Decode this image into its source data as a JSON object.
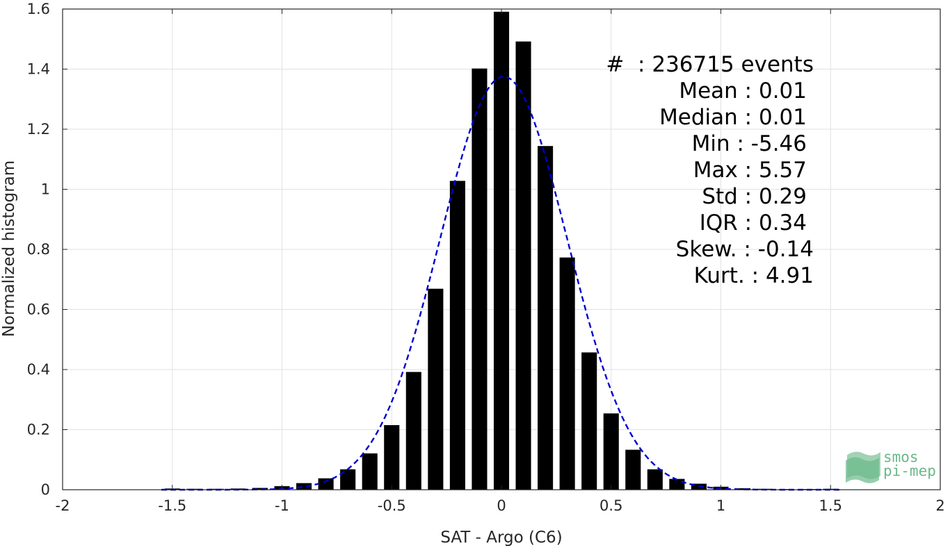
{
  "chart_data": {
    "type": "bar",
    "xlabel": "SAT - Argo (C6)",
    "ylabel": "Normalized histogram",
    "xlim": [
      -2,
      2
    ],
    "ylim": [
      0,
      1.6
    ],
    "grid": true,
    "x_ticks": [
      "-2",
      "-1.5",
      "-1",
      "-0.5",
      "0",
      "0.5",
      "1",
      "1.5",
      "2"
    ],
    "y_ticks": [
      "0",
      "0.2",
      "0.4",
      "0.6",
      "0.8",
      "1",
      "1.2",
      "1.4",
      "1.6"
    ],
    "bar_color": "#000000",
    "bars": {
      "x": [
        -1.5,
        -1.4,
        -1.3,
        -1.2,
        -1.1,
        -1.0,
        -0.9,
        -0.8,
        -0.7,
        -0.6,
        -0.5,
        -0.4,
        -0.3,
        -0.2,
        -0.1,
        0.0,
        0.1,
        0.2,
        0.3,
        0.4,
        0.5,
        0.6,
        0.7,
        0.8,
        0.9,
        1.0,
        1.1,
        1.2,
        1.3,
        1.4,
        1.5
      ],
      "values": [
        0.004,
        0.003,
        0.003,
        0.004,
        0.006,
        0.012,
        0.022,
        0.038,
        0.068,
        0.121,
        0.215,
        0.392,
        0.669,
        1.028,
        1.402,
        1.591,
        1.492,
        1.144,
        0.773,
        0.457,
        0.254,
        0.133,
        0.068,
        0.036,
        0.02,
        0.01,
        0.005,
        0.003,
        0.002,
        0.002,
        0.003
      ]
    },
    "fit_curve": {
      "type": "gaussian",
      "style": "dashed",
      "color": "#0000cc",
      "peak": 1.375,
      "mean": 0.01,
      "std": 0.29
    }
  },
  "stats": [
    {
      "label": "#  : 236715 events"
    },
    {
      "label": "Mean : 0.01"
    },
    {
      "label": "Median : 0.01"
    },
    {
      "label": "Min : -5.46"
    },
    {
      "label": "Max : 5.57"
    },
    {
      "label": "Std : 0.29"
    },
    {
      "label": "IQR : 0.34"
    },
    {
      "label": "Skew. : -0.14"
    },
    {
      "label": "Kurt. : 4.91"
    }
  ],
  "logo": {
    "line1": "smos",
    "line2": "pi-mep",
    "color": "#6ab88a"
  }
}
